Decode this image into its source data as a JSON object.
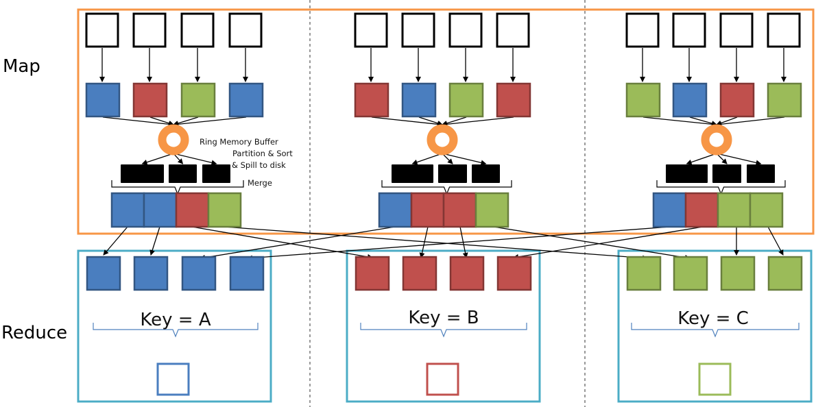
{
  "labels": {
    "map": "Map",
    "reduce": "Reduce",
    "ring_buffer": "Ring Memory Buffer",
    "partition_sort": "Partition & Sort",
    "spill": "& Spill to disk",
    "merge": "Merge"
  },
  "colors": {
    "A": "#4a7ebf",
    "B": "#c0504d",
    "C": "#9bbb59",
    "map_border": "#f79646",
    "reduce_border": "#4bacc6",
    "buffer_ring": "#f79646",
    "spill_block": "#000000",
    "brace": "#4f81bd",
    "divider": "#555555"
  },
  "map_tasks": [
    {
      "outputs": [
        "A",
        "B",
        "C",
        "A"
      ],
      "merged": [
        "A",
        "A",
        "B",
        "C"
      ]
    },
    {
      "outputs": [
        "B",
        "A",
        "C",
        "B"
      ],
      "merged": [
        "A",
        "B",
        "B",
        "C"
      ]
    },
    {
      "outputs": [
        "C",
        "A",
        "B",
        "C"
      ],
      "merged": [
        "A",
        "B",
        "C",
        "C"
      ]
    }
  ],
  "reducers": [
    {
      "key_label": "Key = A",
      "color": "A"
    },
    {
      "key_label": "Key = B",
      "color": "B"
    },
    {
      "key_label": "Key = C",
      "color": "C"
    }
  ]
}
